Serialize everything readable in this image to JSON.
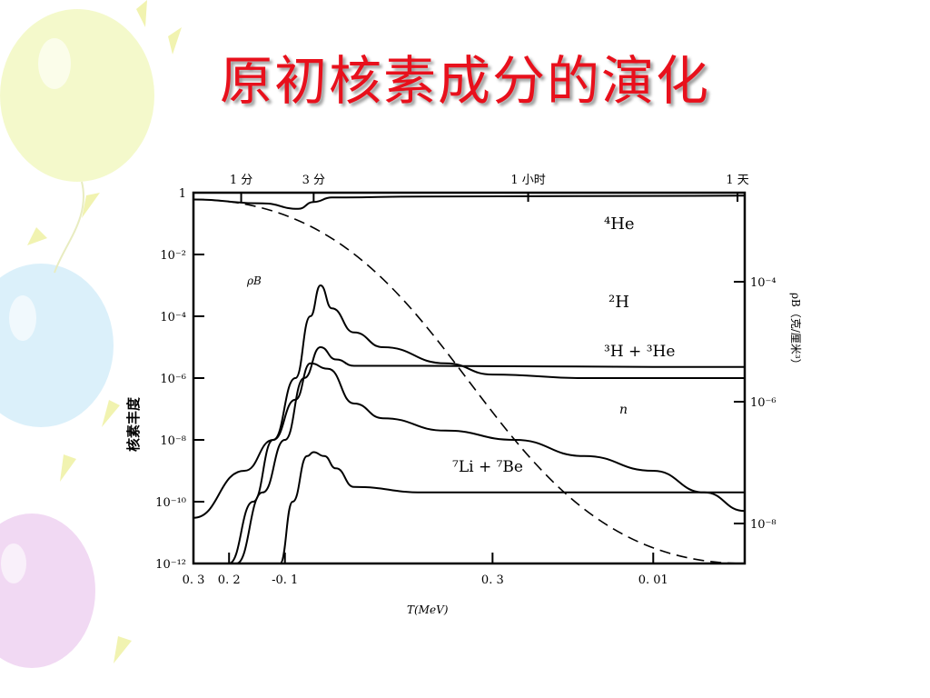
{
  "slide": {
    "title": "原初核素成分的演化"
  },
  "chart_data": {
    "type": "line",
    "title": "",
    "xlabel": "T(MeV)",
    "ylabel": "核素丰度",
    "y2label": "ρB（克/厘米³）",
    "x_scale": "log",
    "y_scale": "log",
    "xlim": [
      1.0,
      0.004
    ],
    "ylim": [
      1e-12,
      1
    ],
    "x_ticks": [
      {
        "value": 1.0,
        "label": "0. 3"
      },
      {
        "value": 0.7,
        "label": "0. 2"
      },
      {
        "value": 0.4,
        "label": "-0. 1"
      },
      {
        "value": 0.05,
        "label": "0. 3"
      },
      {
        "value": 0.01,
        "label": "0. 01"
      }
    ],
    "y_ticks": [
      {
        "value": 1,
        "label": "1"
      },
      {
        "value": 0.01,
        "label": "10⁻²"
      },
      {
        "value": 0.0001,
        "label": "10⁻⁴"
      },
      {
        "value": 1e-06,
        "label": "10⁻⁶"
      },
      {
        "value": 1e-08,
        "label": "10⁻⁸"
      },
      {
        "value": 1e-10,
        "label": "10⁻¹⁰"
      },
      {
        "value": 1e-12,
        "label": "10⁻¹²"
      }
    ],
    "y2_ticks": [
      {
        "value": 0.0001,
        "label": "10⁻⁴"
      },
      {
        "value": 1e-06,
        "label": "10⁻⁶"
      },
      {
        "value": 1e-08,
        "label": "10⁻⁸"
      }
    ],
    "top_ticks": [
      {
        "value": 0.62,
        "label": "1 分"
      },
      {
        "value": 0.3,
        "label": "3 分"
      },
      {
        "value": 0.035,
        "label": "1 小时"
      },
      {
        "value": 0.0043,
        "label": "1 天"
      }
    ],
    "series": [
      {
        "name": "⁴He",
        "x": [
          1.0,
          0.5,
          0.35,
          0.3,
          0.25,
          0.1,
          0.004
        ],
        "y": [
          0.6,
          0.45,
          0.3,
          0.5,
          0.7,
          0.75,
          0.8
        ]
      },
      {
        "name": "²H",
        "x": [
          0.7,
          0.55,
          0.45,
          0.36,
          0.31,
          0.28,
          0.25,
          0.2,
          0.15,
          0.08,
          0.05,
          0.02,
          0.01,
          0.004
        ],
        "y": [
          1e-12,
          1e-10,
          1e-08,
          1e-06,
          0.0001,
          0.001,
          0.00018,
          3e-05,
          1e-05,
          3e-06,
          1.3e-06,
          1e-06,
          1e-06,
          1e-06
        ]
      },
      {
        "name": "³H + ³He",
        "x": [
          0.65,
          0.5,
          0.4,
          0.33,
          0.28,
          0.24,
          0.2,
          0.1,
          0.01,
          0.004
        ],
        "y": [
          1e-12,
          2e-10,
          1e-08,
          1e-06,
          1e-05,
          4e-06,
          2.5e-06,
          2.5e-06,
          2.3e-06,
          2.3e-06
        ]
      },
      {
        "name": "n",
        "x": [
          1.0,
          0.6,
          0.45,
          0.36,
          0.31,
          0.26,
          0.2,
          0.15,
          0.08,
          0.04,
          0.02,
          0.01,
          0.006,
          0.004
        ],
        "y": [
          3e-11,
          1e-09,
          1e-08,
          2e-07,
          3e-06,
          2e-06,
          1.5e-07,
          5e-08,
          2e-08,
          1e-08,
          3e-09,
          1e-09,
          2e-10,
          5e-11
        ]
      },
      {
        "name": "⁷Li + ⁷Be",
        "x": [
          0.42,
          0.37,
          0.32,
          0.3,
          0.27,
          0.24,
          0.2,
          0.1,
          0.004
        ],
        "y": [
          1e-12,
          1e-10,
          3e-09,
          4e-09,
          3e-09,
          1.2e-09,
          3e-10,
          2e-10,
          2e-10
        ]
      },
      {
        "name": "ρB",
        "x": [
          1.0,
          0.004
        ],
        "y": [
          0.6,
          5e-13
        ]
      }
    ]
  }
}
